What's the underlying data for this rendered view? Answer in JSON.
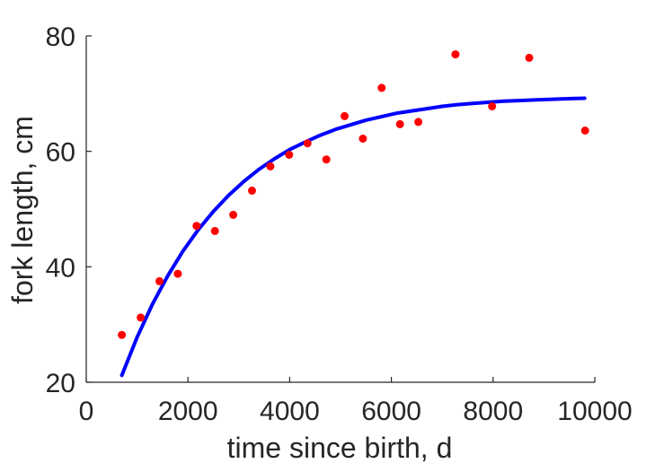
{
  "chart_data": {
    "type": "scatter",
    "xlabel": "time since birth, d",
    "ylabel": "fork length, cm",
    "xlim": [
      0,
      10000
    ],
    "ylim": [
      20,
      80
    ],
    "xticks": [
      0,
      2000,
      4000,
      6000,
      8000,
      10000
    ],
    "yticks": [
      20,
      40,
      60,
      80
    ],
    "grid": false,
    "series": [
      {
        "kind": "points",
        "color": "#ff0000",
        "x": [
          700,
          1070,
          1440,
          1800,
          2170,
          2530,
          2890,
          3260,
          3620,
          3990,
          4350,
          4720,
          5080,
          5440,
          5810,
          6170,
          6530,
          7260,
          7980,
          8710,
          9810
        ],
        "y": [
          28.2,
          31.2,
          37.5,
          38.8,
          47.1,
          46.2,
          49.0,
          53.2,
          57.4,
          59.4,
          61.4,
          58.6,
          66.1,
          62.2,
          71.0,
          64.7,
          65.1,
          76.8,
          67.8,
          76.2,
          63.6
        ]
      },
      {
        "kind": "curve",
        "color": "#0000ff",
        "x": [
          700,
          1000,
          1300,
          1600,
          1900,
          2200,
          2500,
          2800,
          3100,
          3400,
          3700,
          4000,
          4300,
          4600,
          4900,
          5200,
          5500,
          5800,
          6100,
          6400,
          6700,
          7000,
          7300,
          7600,
          7900,
          8200,
          8500,
          8800,
          9100,
          9400,
          9800
        ],
        "y": [
          21.2,
          27.8,
          33.5,
          38.4,
          42.7,
          46.4,
          49.6,
          52.4,
          54.8,
          56.9,
          58.7,
          60.3,
          61.6,
          62.8,
          63.8,
          64.6,
          65.4,
          66.0,
          66.6,
          67.0,
          67.4,
          67.8,
          68.1,
          68.3,
          68.5,
          68.7,
          68.8,
          68.9,
          69.0,
          69.1,
          69.2
        ]
      }
    ]
  }
}
